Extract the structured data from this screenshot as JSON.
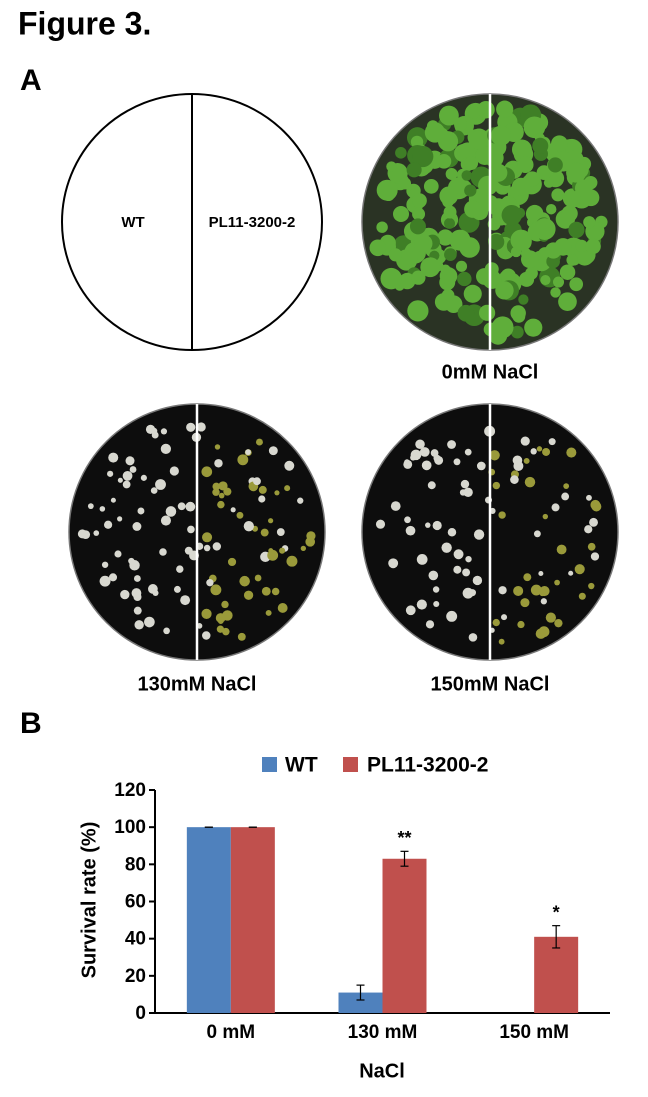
{
  "figure": {
    "title": "Figure 3.",
    "panel_a": {
      "label": "A",
      "diagram_labels": [
        "WT",
        "PL11-3200-2"
      ],
      "plate_labels": [
        "0mM NaCl",
        "130mM NaCl",
        "150mM NaCl"
      ]
    },
    "panel_b": {
      "label": "B"
    }
  },
  "chart_data": {
    "type": "bar",
    "categories": [
      "0 mM",
      "130 mM",
      "150 mM"
    ],
    "x_label": "NaCl",
    "y_label": "Survival rate (%)",
    "series": [
      {
        "name": "WT",
        "color": "#4f81bd",
        "values": [
          100,
          11,
          0
        ],
        "errors": [
          0,
          4,
          0
        ]
      },
      {
        "name": "PL11-3200-2",
        "color": "#c0504d",
        "values": [
          100,
          83,
          41
        ],
        "errors": [
          0,
          4,
          6
        ],
        "significance": [
          null,
          "**",
          "*"
        ]
      }
    ],
    "ylim": [
      0,
      120
    ],
    "yticks": [
      0,
      20,
      40,
      60,
      80,
      100,
      120
    ],
    "grid": false,
    "legend": "top"
  }
}
